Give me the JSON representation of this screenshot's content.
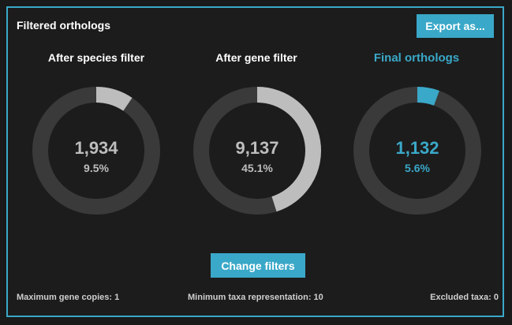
{
  "panel": {
    "title": "Filtered orthologs",
    "export_label": "Export as..."
  },
  "columns": [
    {
      "title": "After species filter",
      "value": "1,934",
      "percent_label": "9.5%",
      "fraction": 0.095,
      "highlight": false
    },
    {
      "title": "After gene filter",
      "value": "9,137",
      "percent_label": "45.1%",
      "fraction": 0.451,
      "highlight": false
    },
    {
      "title": "Final orthologs",
      "value": "1,132",
      "percent_label": "5.6%",
      "fraction": 0.056,
      "highlight": true
    }
  ],
  "change_filters_label": "Change filters",
  "footer": {
    "max_gene_copies": "Maximum gene copies: 1",
    "min_taxa": "Minimum taxa representation: 10",
    "excluded_taxa": "Excluded taxa: 0"
  },
  "colors": {
    "accent": "#3aa8c8",
    "track": "#3a3a3a",
    "fill": "#bdbdbd"
  }
}
